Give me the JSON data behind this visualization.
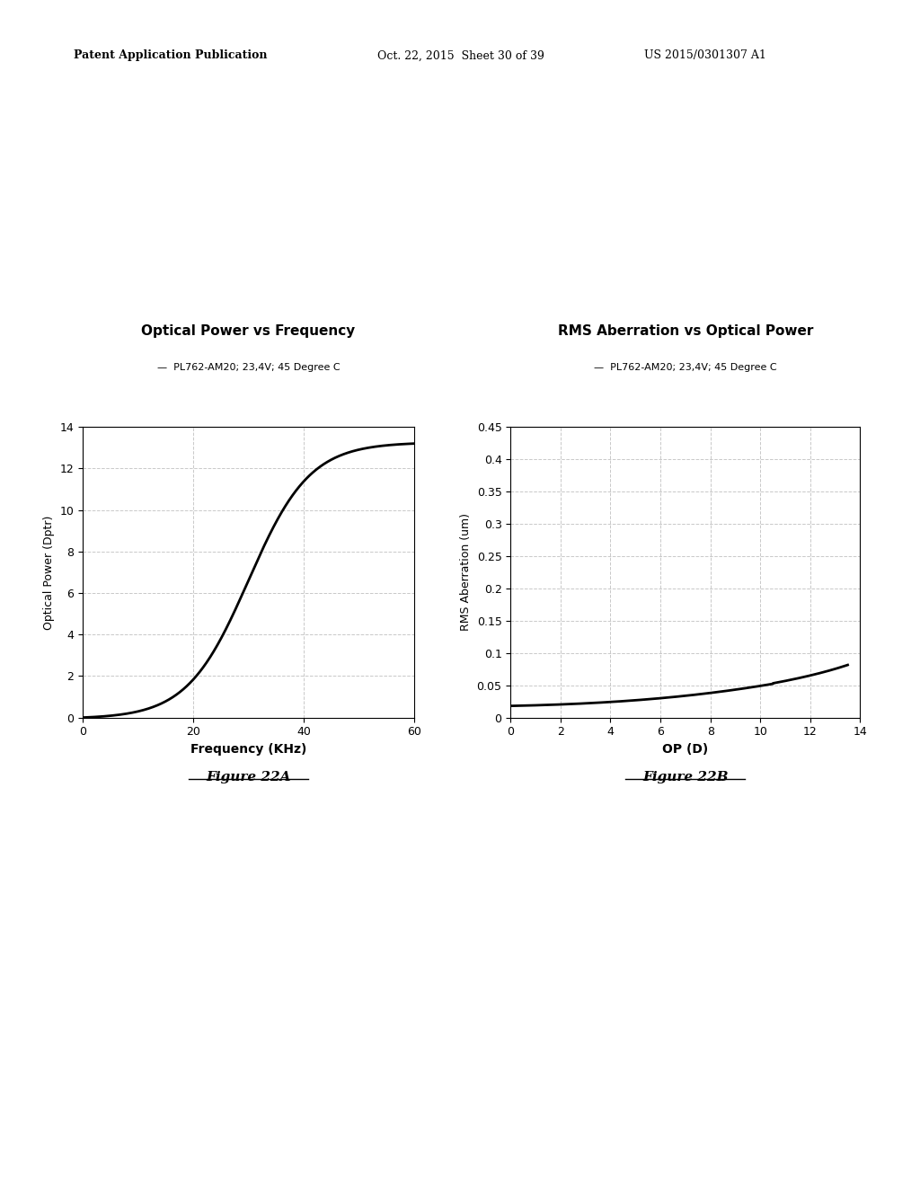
{
  "fig_width": 10.24,
  "fig_height": 13.2,
  "background_color": "#ffffff",
  "header_line1": "Patent Application Publication",
  "header_line2": "Oct. 22, 2015  Sheet 30 of 39",
  "header_line3": "US 2015/0301307 A1",
  "plot1": {
    "title": "Optical Power vs Frequency",
    "legend_label": "PL762-AM20; 23,4V; 45 Degree C",
    "xlabel": "Frequency (KHz)",
    "ylabel": "Optical Power (Dptr)",
    "xlim": [
      0,
      60
    ],
    "ylim": [
      0,
      14
    ],
    "xticks": [
      0,
      20,
      40,
      60
    ],
    "yticks": [
      0,
      2,
      4,
      6,
      8,
      10,
      12,
      14
    ],
    "figure_label": "Figure 22A"
  },
  "plot2": {
    "title": "RMS Aberration vs Optical Power",
    "legend_label": "PL762-AM20; 23,4V; 45 Degree C",
    "xlabel": "OP (D)",
    "ylabel": "RMS Aberration (um)",
    "xlim": [
      0,
      14
    ],
    "ylim": [
      0,
      0.45
    ],
    "xticks": [
      0,
      2,
      4,
      6,
      8,
      10,
      12,
      14
    ],
    "yticks": [
      0,
      0.05,
      0.1,
      0.15,
      0.2,
      0.25,
      0.3,
      0.35,
      0.4,
      0.45
    ],
    "ytick_labels": [
      "0",
      "0.05",
      "0.1",
      "0.15",
      "0.2",
      "0.25",
      "0.3",
      "0.35",
      "0.4",
      "0.45"
    ],
    "figure_label": "Figure 22B"
  },
  "line_color": "#000000",
  "line_width": 2.0,
  "grid_color": "#bbbbbb",
  "grid_style": "--",
  "grid_alpha": 0.8,
  "grid_linewidth": 0.7
}
